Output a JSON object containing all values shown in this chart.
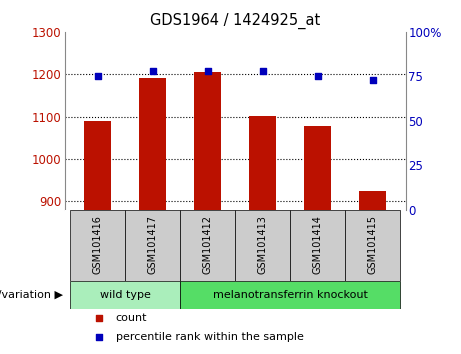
{
  "title": "GDS1964 / 1424925_at",
  "samples": [
    "GSM101416",
    "GSM101417",
    "GSM101412",
    "GSM101413",
    "GSM101414",
    "GSM101415"
  ],
  "counts": [
    1090,
    1190,
    1205,
    1102,
    1078,
    925
  ],
  "percentile_ranks": [
    75,
    78,
    78,
    78,
    75,
    73
  ],
  "ylim_left": [
    880,
    1300
  ],
  "ylim_right": [
    0,
    100
  ],
  "yticks_left": [
    900,
    1000,
    1100,
    1200,
    1300
  ],
  "yticks_right": [
    0,
    25,
    50,
    75,
    100
  ],
  "bar_color": "#bb1100",
  "dot_color": "#0000bb",
  "bar_bottom": 880,
  "groups": [
    {
      "label": "wild type",
      "indices": [
        0,
        1
      ],
      "color": "#aaeebb"
    },
    {
      "label": "melanotransferrin knockout",
      "indices": [
        2,
        3,
        4,
        5
      ],
      "color": "#55dd66"
    }
  ],
  "group_label": "genotype/variation",
  "legend_count_label": "count",
  "legend_percentile_label": "percentile rank within the sample",
  "sample_label_bg": "#cccccc",
  "figsize": [
    4.61,
    3.54
  ],
  "dpi": 100
}
